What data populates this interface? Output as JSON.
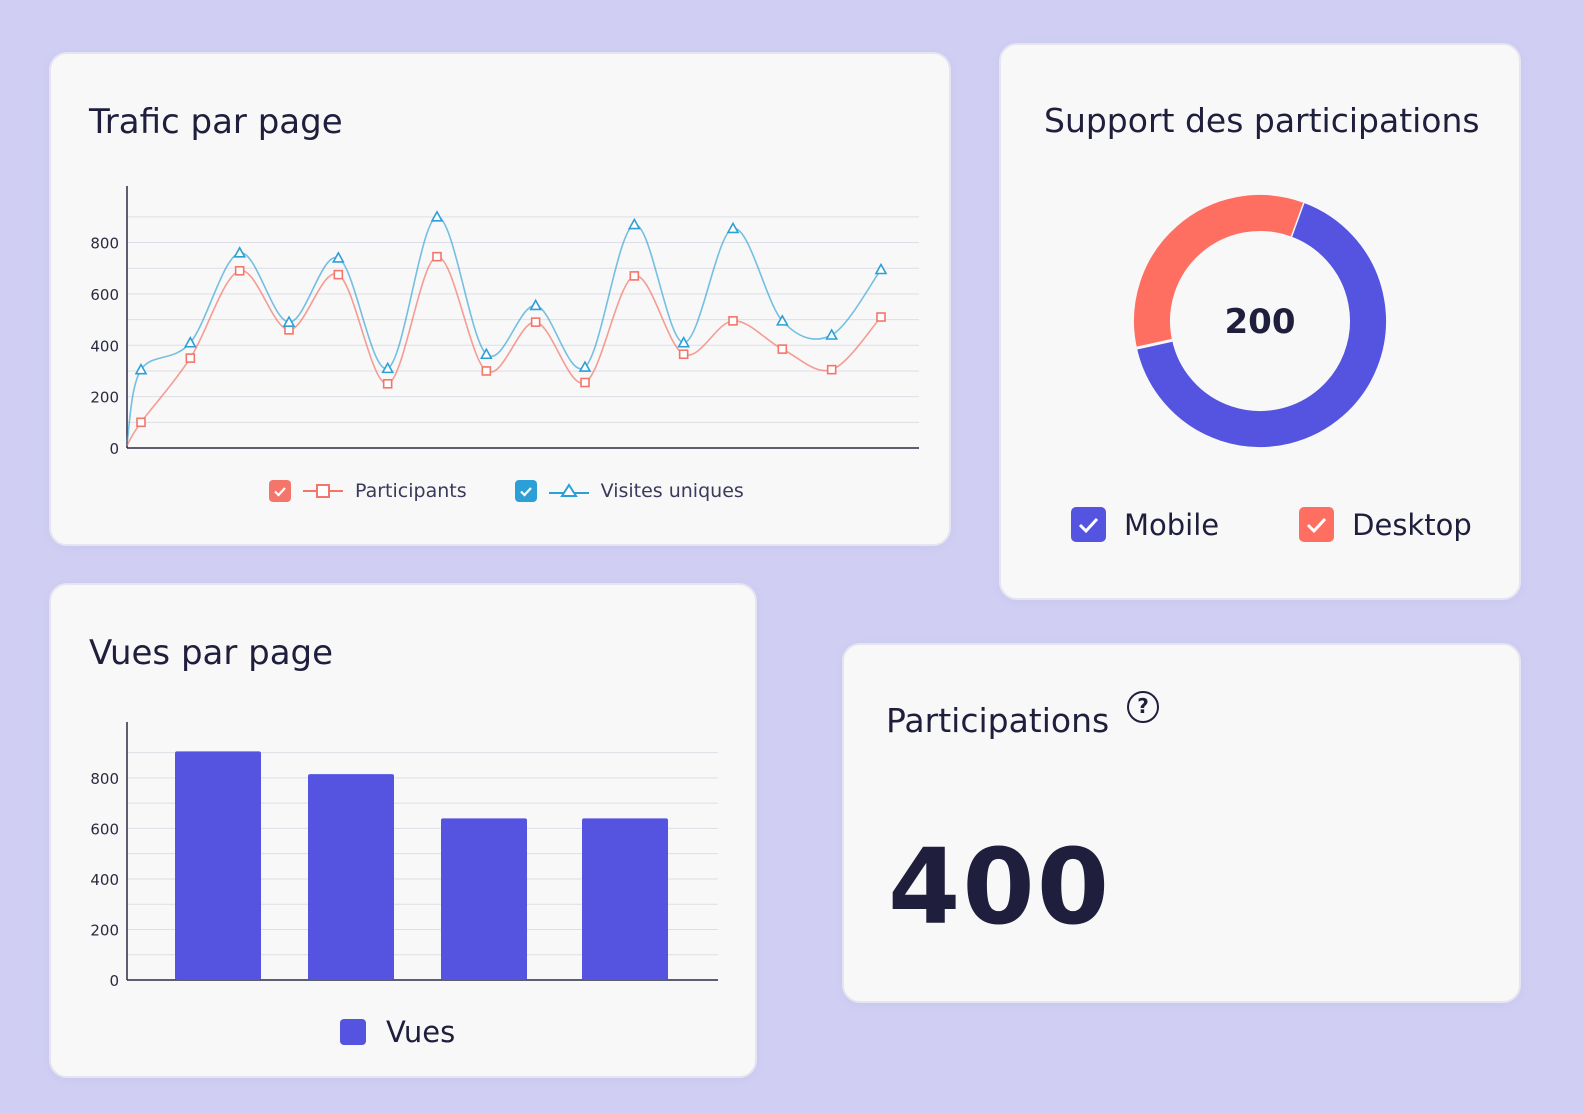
{
  "colors": {
    "background": "#d0cff3",
    "participants": "#f4756a",
    "visites": "#2c9fd6",
    "mobile": "#5454e0",
    "desktop": "#fe6f61",
    "bars": "#5454e0"
  },
  "traffic_card": {
    "title": "Trafic par page"
  },
  "support_card": {
    "title": "Support des participations",
    "center_value": "200"
  },
  "views_card": {
    "title": "Vues par page"
  },
  "kpi_card": {
    "title": "Participations",
    "help_icon": "question-circle-icon",
    "value": "400"
  },
  "chart_data": [
    {
      "type": "line",
      "title": "Trafic par page",
      "x": [
        1,
        2,
        3,
        4,
        5,
        6,
        7,
        8,
        9,
        10,
        11,
        12,
        13,
        14,
        15,
        16
      ],
      "series": [
        {
          "name": "Participants",
          "values": [
            100,
            350,
            690,
            460,
            675,
            250,
            745,
            300,
            490,
            255,
            670,
            365,
            495,
            385,
            305,
            510
          ]
        },
        {
          "name": "Visites uniques",
          "values": [
            305,
            410,
            760,
            490,
            740,
            310,
            900,
            365,
            555,
            315,
            870,
            410,
            855,
            495,
            440,
            695
          ]
        }
      ],
      "yticks": [
        0,
        200,
        400,
        600,
        800
      ],
      "ylim": [
        0,
        950
      ],
      "legend": "bottom",
      "grid": true
    },
    {
      "type": "pie",
      "title": "Support des participations",
      "categories": [
        "Mobile",
        "Desktop"
      ],
      "values": [
        66,
        34
      ],
      "center_label": "200",
      "legend": "bottom"
    },
    {
      "type": "bar",
      "title": "Vues par page",
      "categories": [
        "",
        "",
        "",
        ""
      ],
      "series": [
        {
          "name": "Vues",
          "values": [
            905,
            815,
            640,
            640
          ]
        }
      ],
      "yticks": [
        0,
        200,
        400,
        600,
        800
      ],
      "ylim": [
        0,
        950
      ],
      "legend": "bottom",
      "grid": true
    }
  ]
}
